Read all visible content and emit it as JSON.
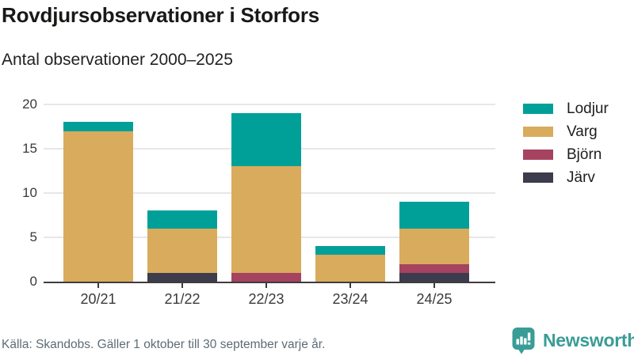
{
  "chart": {
    "title": "Rovdjursobservationer i Storfors",
    "subtitle": "Antal observationer 2000–2025",
    "source_note": "Källa: Skandobs. Gäller 1 oktober till 30 september varje år.",
    "brand": {
      "name": "Newsworthy",
      "logo_icon": "bar-chart-speech-bubble-icon",
      "color": "#3a9c96"
    }
  },
  "chart_data": {
    "type": "bar",
    "stacked": true,
    "title": "Rovdjursobservationer i Storfors",
    "subtitle": "Antal observationer 2000–2025",
    "categories": [
      "20/21",
      "21/22",
      "22/23",
      "23/24",
      "24/25"
    ],
    "series": [
      {
        "name": "Lodjur",
        "color": "#00a099",
        "values": [
          1,
          2,
          6,
          1,
          3
        ]
      },
      {
        "name": "Varg",
        "color": "#d9ab5c",
        "values": [
          17,
          5,
          12,
          3,
          4
        ]
      },
      {
        "name": "Björn",
        "color": "#a54361",
        "values": [
          0,
          0,
          1,
          0,
          1
        ]
      },
      {
        "name": "Järv",
        "color": "#3d3c4c",
        "values": [
          0,
          1,
          0,
          0,
          1
        ]
      }
    ],
    "stack_order_bottom_to_top": [
      "Järv",
      "Björn",
      "Varg",
      "Lodjur"
    ],
    "stack_totals": [
      18,
      8,
      19,
      4,
      9
    ],
    "xlabel": "",
    "ylabel": "",
    "yticks": [
      0,
      5,
      10,
      15,
      20
    ],
    "ylim": [
      0,
      20
    ],
    "grid": "horizontal",
    "legend_position": "right",
    "axis_color": "#3c3c3c",
    "gridline_color": "#e7e7e7"
  }
}
